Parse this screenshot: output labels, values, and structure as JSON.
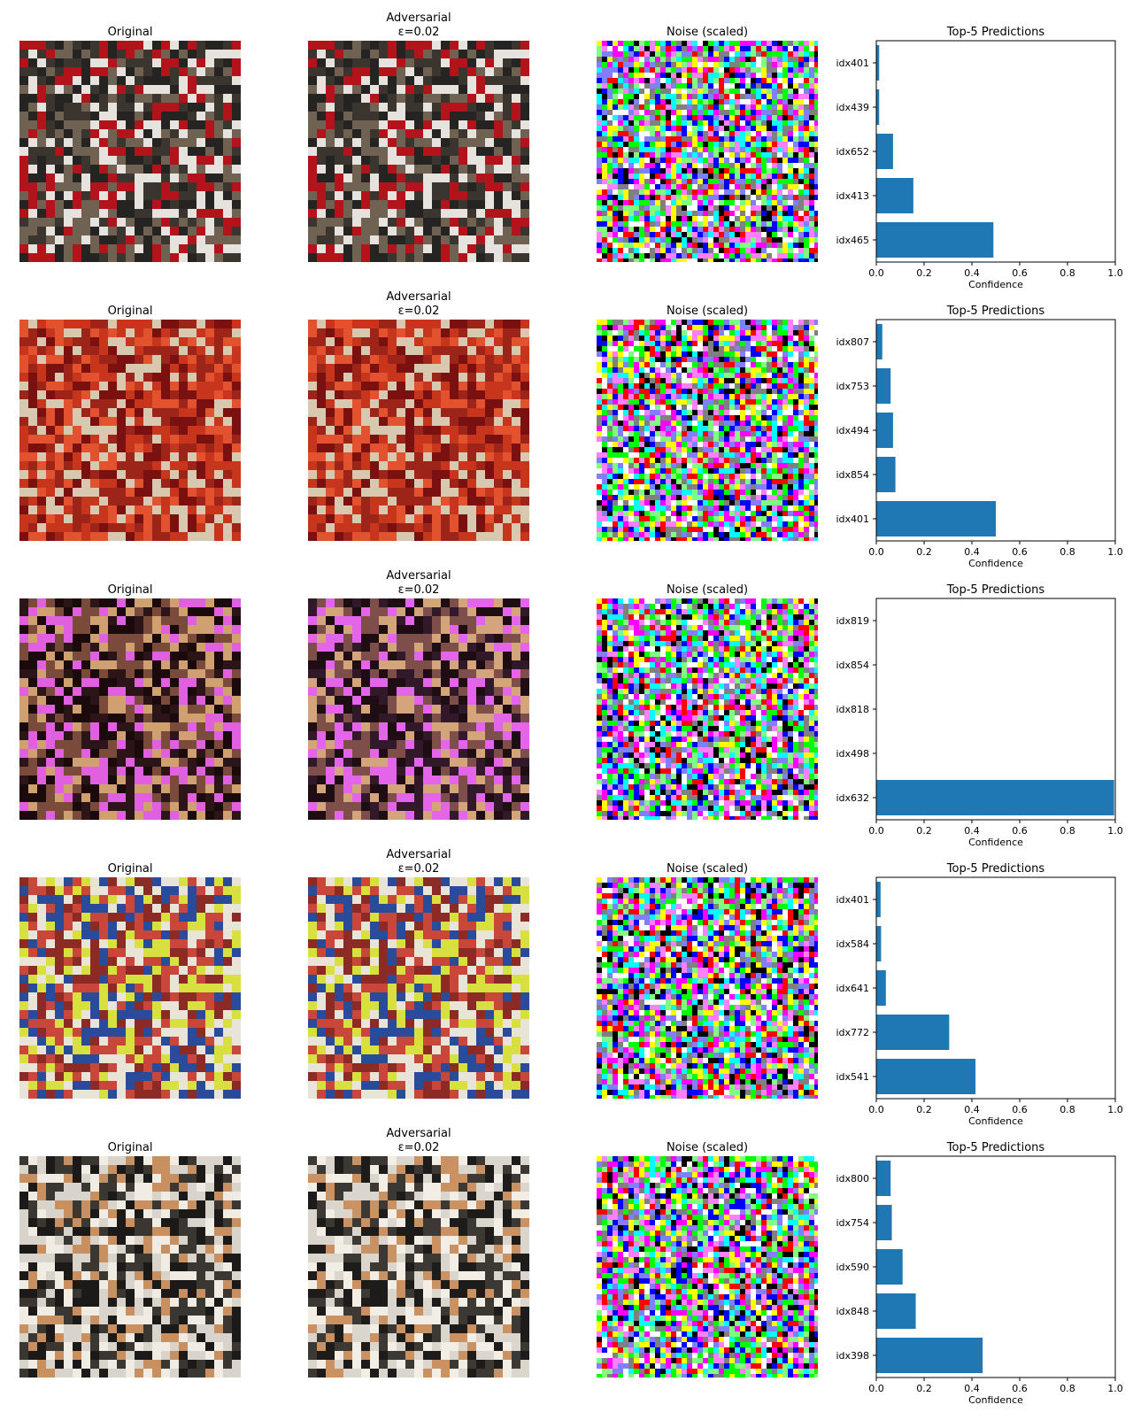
{
  "panel_titles": {
    "original": "Original",
    "adversarial_line1": "Adversarial",
    "adversarial_line2": "ε=0.02",
    "noise": "Noise (scaled)",
    "predictions": "Top-5 Predictions"
  },
  "rows": [
    {
      "original_palette": [
        "#3b3530",
        "#b3141c",
        "#e6e3de",
        "#262422",
        "#6f6253"
      ],
      "adversarial_palette": [
        "#3b3530",
        "#b3141c",
        "#e6e3de",
        "#262422",
        "#6f6253"
      ]
    },
    {
      "original_palette": [
        "#c7361c",
        "#e2522f",
        "#7a1010",
        "#9c2418",
        "#d8c8b0"
      ],
      "adversarial_palette": [
        "#c7361c",
        "#e2522f",
        "#7a1010",
        "#9c2418",
        "#d8c8b0"
      ]
    },
    {
      "original_palette": [
        "#1a0a0c",
        "#2c1518",
        "#7a4a3a",
        "#d0a070",
        "#e060e0"
      ],
      "adversarial_palette": [
        "#1e0e14",
        "#32192a",
        "#7e4e4a",
        "#d4a47a",
        "#e464ea"
      ]
    },
    {
      "original_palette": [
        "#c8463a",
        "#8c2a26",
        "#2a4a9a",
        "#e8e4d8",
        "#d8e040"
      ],
      "adversarial_palette": [
        "#c8463a",
        "#8c2a26",
        "#2a4a9a",
        "#e8e4d8",
        "#d8e040"
      ]
    },
    {
      "original_palette": [
        "#1c1a18",
        "#3a3632",
        "#d8d4cc",
        "#c89060",
        "#f0ece4"
      ],
      "adversarial_palette": [
        "#1e1c1a",
        "#3c3834",
        "#dad6ce",
        "#ca9262",
        "#f2eee6"
      ]
    }
  ],
  "noise_palette": [
    "#ff00ff",
    "#00ff00",
    "#0000ff",
    "#ffff00",
    "#00ffff",
    "#ff0000",
    "#000000",
    "#ffffff",
    "#808080",
    "#ff80ff",
    "#80ff80",
    "#8080ff"
  ],
  "chart_data": [
    {
      "type": "bar",
      "orientation": "horizontal",
      "title": "Top-5 Predictions",
      "xlabel": "Confidence",
      "xlim": [
        0,
        1.0
      ],
      "xticks": [
        "0.0",
        "0.2",
        "0.4",
        "0.6",
        "0.8",
        "1.0"
      ],
      "categories": [
        "idx465",
        "idx413",
        "idx652",
        "idx439",
        "idx401"
      ],
      "values": [
        0.49,
        0.155,
        0.07,
        0.012,
        0.012
      ],
      "color": "#1f77b4"
    },
    {
      "type": "bar",
      "orientation": "horizontal",
      "title": "Top-5 Predictions",
      "xlabel": "Confidence",
      "xlim": [
        0,
        1.0
      ],
      "xticks": [
        "0.0",
        "0.2",
        "0.4",
        "0.6",
        "0.8",
        "1.0"
      ],
      "categories": [
        "idx401",
        "idx854",
        "idx494",
        "idx753",
        "idx807"
      ],
      "values": [
        0.5,
        0.08,
        0.07,
        0.06,
        0.025
      ],
      "color": "#1f77b4"
    },
    {
      "type": "bar",
      "orientation": "horizontal",
      "title": "Top-5 Predictions",
      "xlabel": "Confidence",
      "xlim": [
        0,
        1.0
      ],
      "xticks": [
        "0.0",
        "0.2",
        "0.4",
        "0.6",
        "0.8",
        "1.0"
      ],
      "categories": [
        "idx632",
        "idx498",
        "idx818",
        "idx854",
        "idx819"
      ],
      "values": [
        0.995,
        0.002,
        0.001,
        0.001,
        0.001
      ],
      "color": "#1f77b4"
    },
    {
      "type": "bar",
      "orientation": "horizontal",
      "title": "Top-5 Predictions",
      "xlabel": "Confidence",
      "xlim": [
        0,
        1.0
      ],
      "xticks": [
        "0.0",
        "0.2",
        "0.4",
        "0.6",
        "0.8",
        "1.0"
      ],
      "categories": [
        "idx541",
        "idx772",
        "idx641",
        "idx584",
        "idx401"
      ],
      "values": [
        0.415,
        0.305,
        0.04,
        0.02,
        0.018
      ],
      "color": "#1f77b4"
    },
    {
      "type": "bar",
      "orientation": "horizontal",
      "title": "Top-5 Predictions",
      "xlabel": "Confidence",
      "xlim": [
        0,
        1.0
      ],
      "xticks": [
        "0.0",
        "0.2",
        "0.4",
        "0.6",
        "0.8",
        "1.0"
      ],
      "categories": [
        "idx398",
        "idx848",
        "idx590",
        "idx754",
        "idx800"
      ],
      "values": [
        0.445,
        0.165,
        0.11,
        0.065,
        0.06
      ],
      "color": "#1f77b4"
    }
  ]
}
